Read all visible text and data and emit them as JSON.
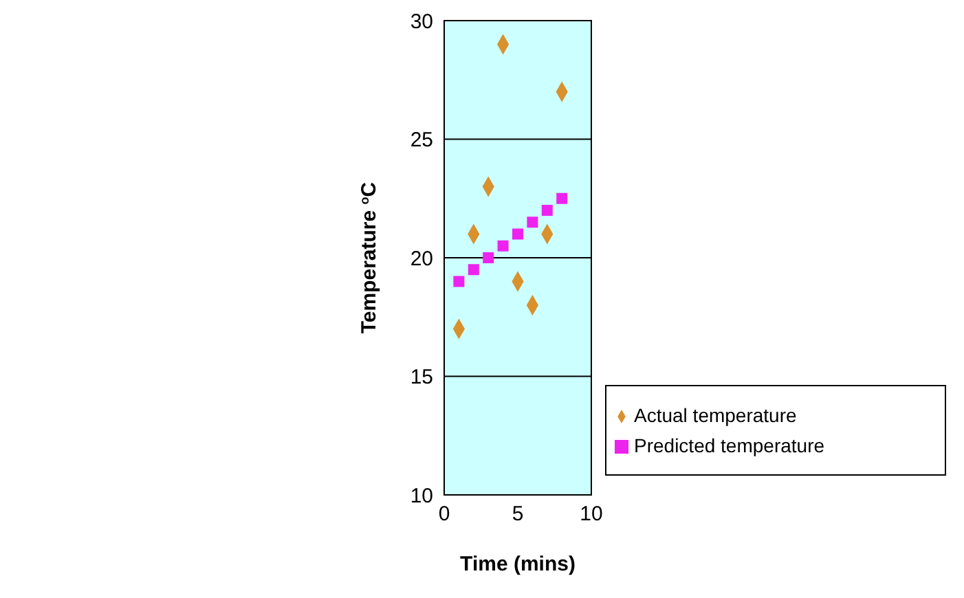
{
  "chart_data": {
    "type": "scatter",
    "xlabel": "Time (mins)",
    "ylabel": "Temperature $^{o}$C",
    "xlim": [
      0,
      10
    ],
    "xticks": [
      0,
      5,
      10
    ],
    "ylim": [
      10,
      30
    ],
    "yticks": [
      10,
      15,
      20,
      25,
      30
    ],
    "grid": "y",
    "legend": "bottom right",
    "series": [
      {
        "name": "Actual temperature",
        "color": "#d9912d",
        "marker": "diamond",
        "x": [
          1,
          2,
          3,
          4,
          5,
          6,
          7,
          8
        ],
        "values": [
          17,
          21,
          23,
          29,
          19,
          18,
          21,
          27
        ]
      },
      {
        "name": "Predicted temperature",
        "color": "#ee22ee",
        "marker": "square",
        "x": [
          1,
          2,
          3,
          4,
          5,
          6,
          7,
          8
        ],
        "values": [
          19,
          19.5,
          20,
          20.5,
          21,
          21.5,
          22,
          22.5
        ]
      }
    ]
  }
}
